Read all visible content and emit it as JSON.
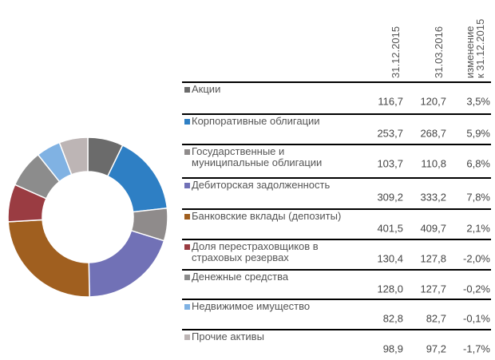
{
  "chart_data": {
    "type": "pie",
    "donut": true,
    "categories": [
      "Акции",
      "Корпоративные облигации",
      "Государственные и\nмуниципальные облигации",
      "Дебиторская задолженность",
      "Банковские вклады (депозиты)",
      "Доля перестраховщиков в\nстраховых резервах",
      "Денежные средства",
      "Недвижимое имущество",
      "Прочие активы"
    ],
    "colors": [
      "#6b6b6b",
      "#2e7fc4",
      "#8f8b8b",
      "#7171b6",
      "#a05f1f",
      "#9a3c42",
      "#8c8c8c",
      "#80b2e3",
      "#bdb5b5"
    ],
    "series": [
      {
        "name": "31.12.2015",
        "values": [
          116.7,
          253.7,
          103.7,
          309.2,
          401.5,
          130.4,
          128.0,
          82.8,
          98.9
        ],
        "value_labels": [
          "116,7",
          "253,7",
          "103,7",
          "309,2",
          "401,5",
          "130,4",
          "128,0",
          "82,8",
          "98,9"
        ]
      },
      {
        "name": "31.03.2016",
        "values": [
          120.7,
          268.7,
          110.8,
          333.2,
          409.7,
          127.8,
          127.7,
          82.7,
          97.2
        ],
        "value_labels": [
          "120,7",
          "268,7",
          "110,8",
          "333,2",
          "409,7",
          "127,8",
          "127,7",
          "82,7",
          "97,2"
        ]
      }
    ],
    "change": {
      "name": "изменение\nк 31.12.2015",
      "values": [
        3.5,
        5.9,
        6.8,
        7.8,
        2.1,
        -2.0,
        -0.2,
        -0.1,
        -1.7
      ],
      "value_labels": [
        "3,5%",
        "5,9%",
        "6,8%",
        "7,8%",
        "2,1%",
        "-2,0%",
        "-0,2%",
        "-0,1%",
        "-1,7%"
      ]
    }
  }
}
